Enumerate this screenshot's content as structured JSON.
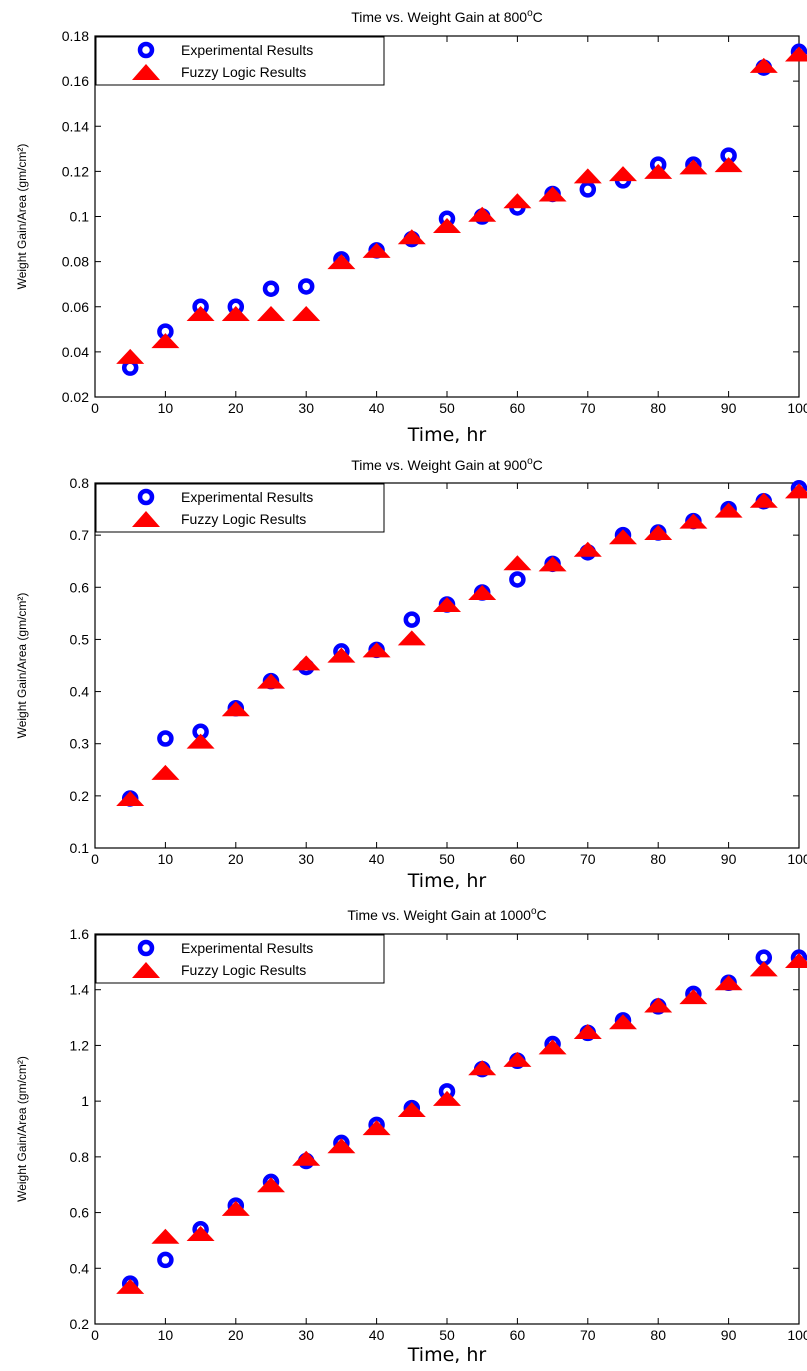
{
  "chart_data": [
    {
      "type": "scatter",
      "title": "Time vs. Weight Gain at 800°C",
      "title_main": "Time vs. Weight Gain at 800",
      "title_sup": "o",
      "title_unit": "C",
      "xlabel": "Time, hr",
      "ylabel": "Weight Gain/Area (gm/cm²)",
      "xlim": [
        0,
        100
      ],
      "ylim": [
        0.02,
        0.18
      ],
      "xticks": [
        0,
        10,
        20,
        30,
        40,
        50,
        60,
        70,
        80,
        90,
        100
      ],
      "yticks": [
        0.02,
        0.04,
        0.06,
        0.08,
        0.1,
        0.12,
        0.14,
        0.16,
        0.18
      ],
      "ytick_labels": [
        "0.02",
        "0.04",
        "0.06",
        "0.08",
        "0.1",
        "0.12",
        "0.14",
        "0.16",
        "0.18"
      ],
      "grid": false,
      "legend_position": "top-left",
      "series": [
        {
          "name": "Experimental Results",
          "marker": "circle",
          "color": "#0000ff",
          "x": [
            5,
            10,
            15,
            20,
            25,
            30,
            35,
            40,
            45,
            50,
            55,
            60,
            65,
            70,
            75,
            80,
            85,
            90,
            95,
            100
          ],
          "y": [
            0.033,
            0.049,
            0.06,
            0.06,
            0.068,
            0.069,
            0.081,
            0.085,
            0.09,
            0.099,
            0.1,
            0.104,
            0.11,
            0.112,
            0.116,
            0.123,
            0.123,
            0.127,
            0.166,
            0.173
          ]
        },
        {
          "name": "Fuzzy Logic Results",
          "marker": "triangle",
          "color": "#ff0000",
          "x": [
            5,
            10,
            15,
            20,
            25,
            30,
            35,
            40,
            45,
            50,
            55,
            60,
            65,
            70,
            75,
            80,
            85,
            90,
            95,
            100
          ],
          "y": [
            0.038,
            0.045,
            0.057,
            0.057,
            0.057,
            0.057,
            0.08,
            0.085,
            0.091,
            0.096,
            0.101,
            0.107,
            0.11,
            0.118,
            0.119,
            0.12,
            0.122,
            0.123,
            0.167,
            0.172
          ]
        }
      ]
    },
    {
      "type": "scatter",
      "title": "Time vs. Weight Gain at 900°C",
      "title_main": "Time vs. Weight Gain at 900",
      "title_sup": "o",
      "title_unit": "C",
      "xlabel": "Time, hr",
      "ylabel": "Weight Gain/Area (gm/cm²)",
      "xlim": [
        0,
        100
      ],
      "ylim": [
        0.1,
        0.8
      ],
      "xticks": [
        0,
        10,
        20,
        30,
        40,
        50,
        60,
        70,
        80,
        90,
        100
      ],
      "yticks": [
        0.1,
        0.2,
        0.3,
        0.4,
        0.5,
        0.6,
        0.7,
        0.8
      ],
      "ytick_labels": [
        "0.1",
        "0.2",
        "0.3",
        "0.4",
        "0.5",
        "0.6",
        "0.7",
        "0.8"
      ],
      "grid": false,
      "legend_position": "top-left",
      "series": [
        {
          "name": "Experimental Results",
          "marker": "circle",
          "color": "#0000ff",
          "x": [
            5,
            10,
            15,
            20,
            25,
            30,
            35,
            40,
            45,
            50,
            55,
            60,
            65,
            70,
            75,
            80,
            85,
            90,
            95,
            100
          ],
          "y": [
            0.195,
            0.31,
            0.323,
            0.368,
            0.42,
            0.447,
            0.477,
            0.48,
            0.538,
            0.567,
            0.59,
            0.615,
            0.645,
            0.667,
            0.7,
            0.705,
            0.727,
            0.75,
            0.765,
            0.79
          ]
        },
        {
          "name": "Fuzzy Logic Results",
          "marker": "triangle",
          "color": "#ff0000",
          "x": [
            5,
            10,
            15,
            20,
            25,
            30,
            35,
            40,
            45,
            50,
            55,
            60,
            65,
            70,
            75,
            80,
            85,
            90,
            95,
            100
          ],
          "y": [
            0.195,
            0.245,
            0.305,
            0.367,
            0.42,
            0.455,
            0.47,
            0.48,
            0.503,
            0.567,
            0.59,
            0.647,
            0.645,
            0.673,
            0.697,
            0.705,
            0.727,
            0.748,
            0.767,
            0.785
          ]
        }
      ]
    },
    {
      "type": "scatter",
      "title": "Time vs. Weight Gain at 1000°C",
      "title_main": "Time vs. Weight Gain at 1000",
      "title_sup": "o",
      "title_unit": "C",
      "xlabel": "Time, hr",
      "ylabel": "Weight Gain/Area (gm/cm²)",
      "xlim": [
        0,
        100
      ],
      "ylim": [
        0.2,
        1.6
      ],
      "xticks": [
        0,
        10,
        20,
        30,
        40,
        50,
        60,
        70,
        80,
        90,
        100
      ],
      "yticks": [
        0.2,
        0.4,
        0.6,
        0.8,
        1.0,
        1.2,
        1.4,
        1.6
      ],
      "ytick_labels": [
        "0.2",
        "0.4",
        "0.6",
        "0.8",
        "1",
        "1.2",
        "1.4",
        "1.6"
      ],
      "grid": false,
      "legend_position": "top-left",
      "series": [
        {
          "name": "Experimental Results",
          "marker": "circle",
          "color": "#0000ff",
          "x": [
            5,
            10,
            15,
            20,
            25,
            30,
            35,
            40,
            45,
            50,
            55,
            60,
            65,
            70,
            75,
            80,
            85,
            90,
            95,
            100
          ],
          "y": [
            0.345,
            0.43,
            0.54,
            0.625,
            0.71,
            0.785,
            0.85,
            0.915,
            0.975,
            1.035,
            1.115,
            1.145,
            1.205,
            1.245,
            1.29,
            1.34,
            1.385,
            1.425,
            1.515,
            1.515
          ]
        },
        {
          "name": "Fuzzy Logic Results",
          "marker": "triangle",
          "color": "#ff0000",
          "x": [
            5,
            10,
            15,
            20,
            25,
            30,
            35,
            40,
            45,
            50,
            55,
            60,
            65,
            70,
            75,
            80,
            85,
            90,
            95,
            100
          ],
          "y": [
            0.335,
            0.515,
            0.525,
            0.615,
            0.7,
            0.795,
            0.84,
            0.905,
            0.97,
            1.01,
            1.12,
            1.15,
            1.195,
            1.25,
            1.285,
            1.345,
            1.375,
            1.425,
            1.475,
            1.505
          ]
        }
      ]
    }
  ]
}
